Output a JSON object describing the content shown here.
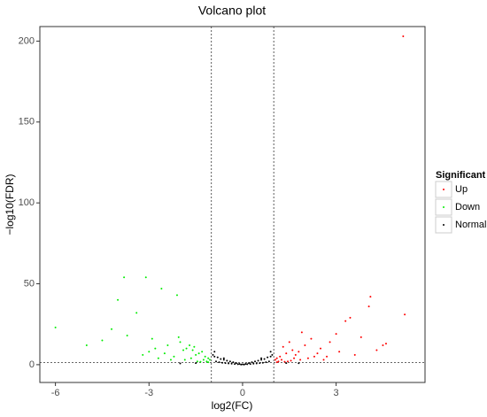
{
  "chart_data": {
    "type": "scatter",
    "title": "Volcano plot",
    "x_label": "log2(FC)",
    "y_label": "−log10(FDR)",
    "xlim": [
      -6.5,
      5.85
    ],
    "ylim": [
      -11,
      209
    ],
    "xticks": [
      -6,
      -3,
      0,
      3
    ],
    "yticks": [
      0,
      50,
      100,
      150,
      200
    ],
    "vlines": [
      -1,
      1
    ],
    "hline": 1.3,
    "legend_title": "Significant",
    "legend_position": "right",
    "series": [
      {
        "name": "Up",
        "color": "#ff0000",
        "x": [
          5.15,
          5.2,
          4.1,
          4.05,
          3.45,
          3.3,
          3.8,
          4.5,
          4.6,
          3.0,
          2.8,
          2.5,
          2.2,
          2.0,
          1.8,
          1.6,
          1.4,
          1.2,
          1.1,
          1.05,
          1.3,
          1.5,
          1.7,
          1.9,
          2.1,
          2.4,
          2.7,
          3.1,
          3.6,
          4.3,
          1.15,
          1.25,
          1.45,
          1.65,
          1.85,
          2.3,
          2.6,
          1.1,
          1.35,
          1.55
        ],
        "values": [
          203,
          31,
          42,
          36,
          29,
          27,
          17,
          12,
          13,
          19,
          14,
          10,
          16,
          12,
          8,
          9,
          7,
          5,
          4,
          3,
          11,
          14,
          6,
          20,
          4,
          7,
          5,
          8,
          6,
          9,
          2,
          3,
          2,
          4,
          3,
          5,
          3,
          1.5,
          1.8,
          2.5
        ]
      },
      {
        "name": "Down",
        "color": "#00ee00",
        "x": [
          -6,
          -5,
          -4.2,
          -3.8,
          -3.1,
          -2.6,
          -2.1,
          -3.4,
          -4,
          -3.7,
          -2.9,
          -2.4,
          -2,
          -1.8,
          -1.6,
          -1.4,
          -1.2,
          -1.1,
          -1.05,
          -1.3,
          -1.5,
          -1.7,
          -1.9,
          -2.2,
          -2.5,
          -2.8,
          -3.2,
          -4.5,
          -1.15,
          -1.25,
          -1.45,
          -1.65,
          -1.85,
          -2.3,
          -2.7,
          -1.1,
          -1.35,
          -3,
          -2.05,
          -1.55
        ],
        "values": [
          23,
          12,
          22,
          54,
          54,
          47,
          43,
          32,
          40,
          18,
          16,
          12,
          14,
          10,
          9,
          7,
          5,
          4,
          3,
          8,
          6,
          12,
          9,
          5,
          7,
          10,
          6,
          15,
          2,
          3,
          2,
          4,
          3,
          3,
          4,
          1.5,
          1.8,
          8,
          17,
          11
        ]
      },
      {
        "name": "Normal",
        "color": "#000000",
        "x": [
          -0.95,
          -0.9,
          -0.8,
          -0.7,
          -0.6,
          -0.5,
          -0.4,
          -0.3,
          -0.2,
          -0.1,
          0,
          0.1,
          0.2,
          0.3,
          0.4,
          0.5,
          0.6,
          0.7,
          0.8,
          0.9,
          0.95,
          -0.85,
          -0.75,
          -0.65,
          -0.55,
          -0.45,
          -0.35,
          -0.25,
          -0.15,
          -0.05,
          0.05,
          0.15,
          0.25,
          0.35,
          0.45,
          0.55,
          0.65,
          0.75,
          0.85,
          -1.5,
          1.4,
          -2.0,
          1.8,
          -0.9,
          0.9,
          -0.6,
          0.6
        ],
        "values": [
          6,
          5,
          4.5,
          3.5,
          3,
          2.5,
          2,
          1.5,
          1,
          0.5,
          0.2,
          0.5,
          1,
          1.5,
          2,
          2.5,
          3,
          3.5,
          4.5,
          5,
          6,
          2,
          1.5,
          1.2,
          1,
          0.8,
          0.6,
          0.4,
          0.3,
          0.1,
          0.1,
          0.3,
          0.4,
          0.6,
          0.8,
          1,
          1.2,
          1.5,
          2,
          1,
          1,
          0.8,
          0.9,
          8,
          8,
          4,
          4
        ]
      }
    ]
  }
}
